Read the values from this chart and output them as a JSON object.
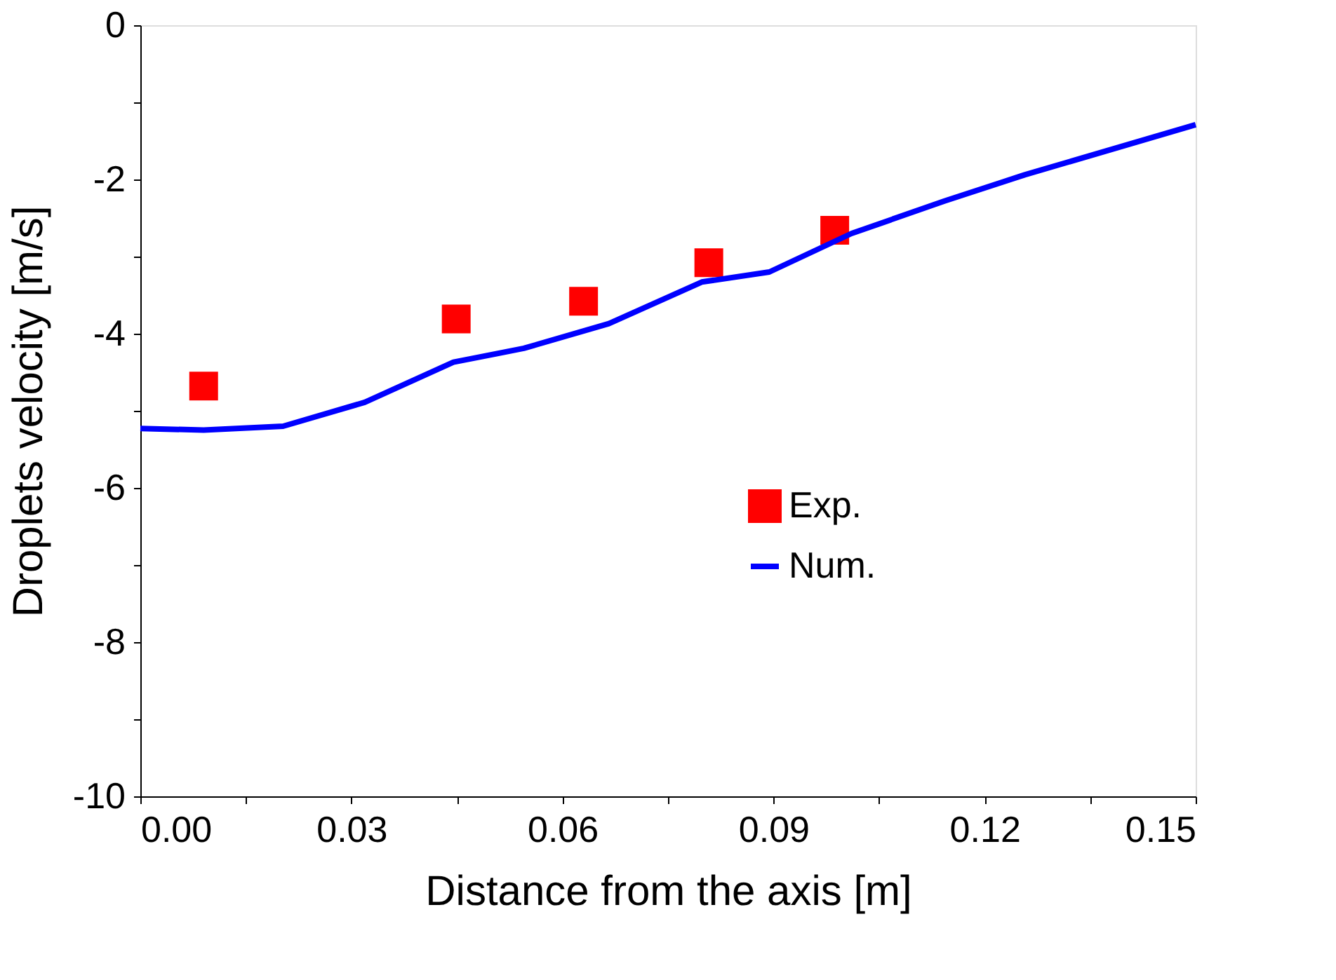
{
  "chart_data": {
    "type": "scatter",
    "xlabel": "Distance from the axis [m]",
    "ylabel": "Droplets velocity [m/s]",
    "xlim": [
      0,
      0.15
    ],
    "ylim": [
      -10,
      0
    ],
    "xticks": [
      {
        "value": 0,
        "label": "0.00"
      },
      {
        "value": 0.015,
        "label": null
      },
      {
        "value": 0.03,
        "label": "0.03"
      },
      {
        "value": 0.045,
        "label": null
      },
      {
        "value": 0.06,
        "label": "0.06"
      },
      {
        "value": 0.075,
        "label": null
      },
      {
        "value": 0.09,
        "label": "0.09"
      },
      {
        "value": 0.105,
        "label": null
      },
      {
        "value": 0.12,
        "label": "0.12"
      },
      {
        "value": 0.135,
        "label": null
      },
      {
        "value": 0.15,
        "label": "0.15"
      }
    ],
    "yticks": [
      -10,
      {
        "value": -9,
        "label": null
      },
      -8,
      {
        "value": -7,
        "label": null
      },
      -6,
      {
        "value": -5,
        "label": null
      },
      -4,
      {
        "value": -3,
        "label": null
      },
      -2,
      {
        "value": -1,
        "label": null
      },
      0
    ],
    "grid": false,
    "legend": "center",
    "series": [
      {
        "name": "Exp.",
        "marker": "square",
        "color": "#ff0000",
        "x": [
          0.009,
          0.0449,
          0.063,
          0.0808,
          0.0987
        ],
        "values": [
          -4.68,
          -3.81,
          -3.58,
          -3.08,
          -2.66
        ]
      },
      {
        "name": "Num.",
        "type": "line",
        "marker": "none",
        "line_style": "solid",
        "color": "#0000ff",
        "x": [
          0,
          0.009,
          0.0203,
          0.0319,
          0.0445,
          0.0545,
          0.0666,
          0.0798,
          0.0894,
          0.1011,
          0.1143,
          0.1257,
          0.15
        ],
        "values": [
          -5.23,
          -5.25,
          -5.2,
          -4.89,
          -4.37,
          -4.19,
          -3.87,
          -3.33,
          -3.2,
          -2.7,
          -2.28,
          -1.94,
          -1.29
        ]
      }
    ]
  }
}
